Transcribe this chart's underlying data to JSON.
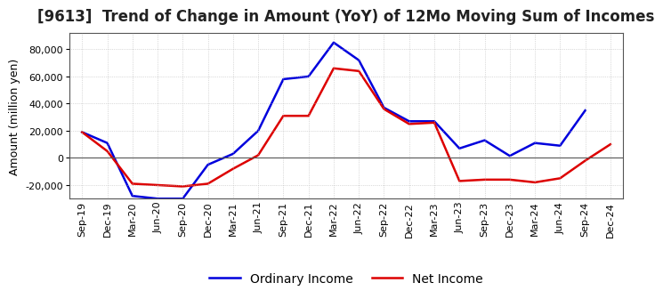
{
  "title": "[9613]  Trend of Change in Amount (YoY) of 12Mo Moving Sum of Incomes",
  "ylabel": "Amount (million yen)",
  "background_color": "#ffffff",
  "grid_color": "#bbbbbb",
  "x_labels": [
    "Sep-19",
    "Dec-19",
    "Mar-20",
    "Jun-20",
    "Sep-20",
    "Dec-20",
    "Mar-21",
    "Jun-21",
    "Sep-21",
    "Dec-21",
    "Mar-22",
    "Jun-22",
    "Sep-22",
    "Dec-22",
    "Mar-23",
    "Jun-23",
    "Sep-23",
    "Dec-23",
    "Mar-24",
    "Jun-24",
    "Sep-24",
    "Dec-24"
  ],
  "ordinary_income": [
    19000,
    11000,
    -28000,
    -30000,
    -30000,
    -5000,
    3000,
    20000,
    58000,
    60000,
    85000,
    72000,
    37000,
    27000,
    27000,
    7000,
    13000,
    1500,
    11000,
    9000,
    35000,
    null
  ],
  "net_income": [
    19000,
    5000,
    -19000,
    -20000,
    -21000,
    -19000,
    -8000,
    2000,
    31000,
    31000,
    66000,
    64000,
    36000,
    25000,
    26000,
    -17000,
    -16000,
    -16000,
    -18000,
    -15000,
    -2000,
    10000
  ],
  "ordinary_color": "#0000dd",
  "net_color": "#dd0000",
  "ylim": [
    -30000,
    92000
  ],
  "yticks": [
    -20000,
    0,
    20000,
    40000,
    60000,
    80000
  ],
  "legend_ordinary": "Ordinary Income",
  "legend_net": "Net Income",
  "title_fontsize": 12,
  "axis_fontsize": 9,
  "tick_fontsize": 8
}
